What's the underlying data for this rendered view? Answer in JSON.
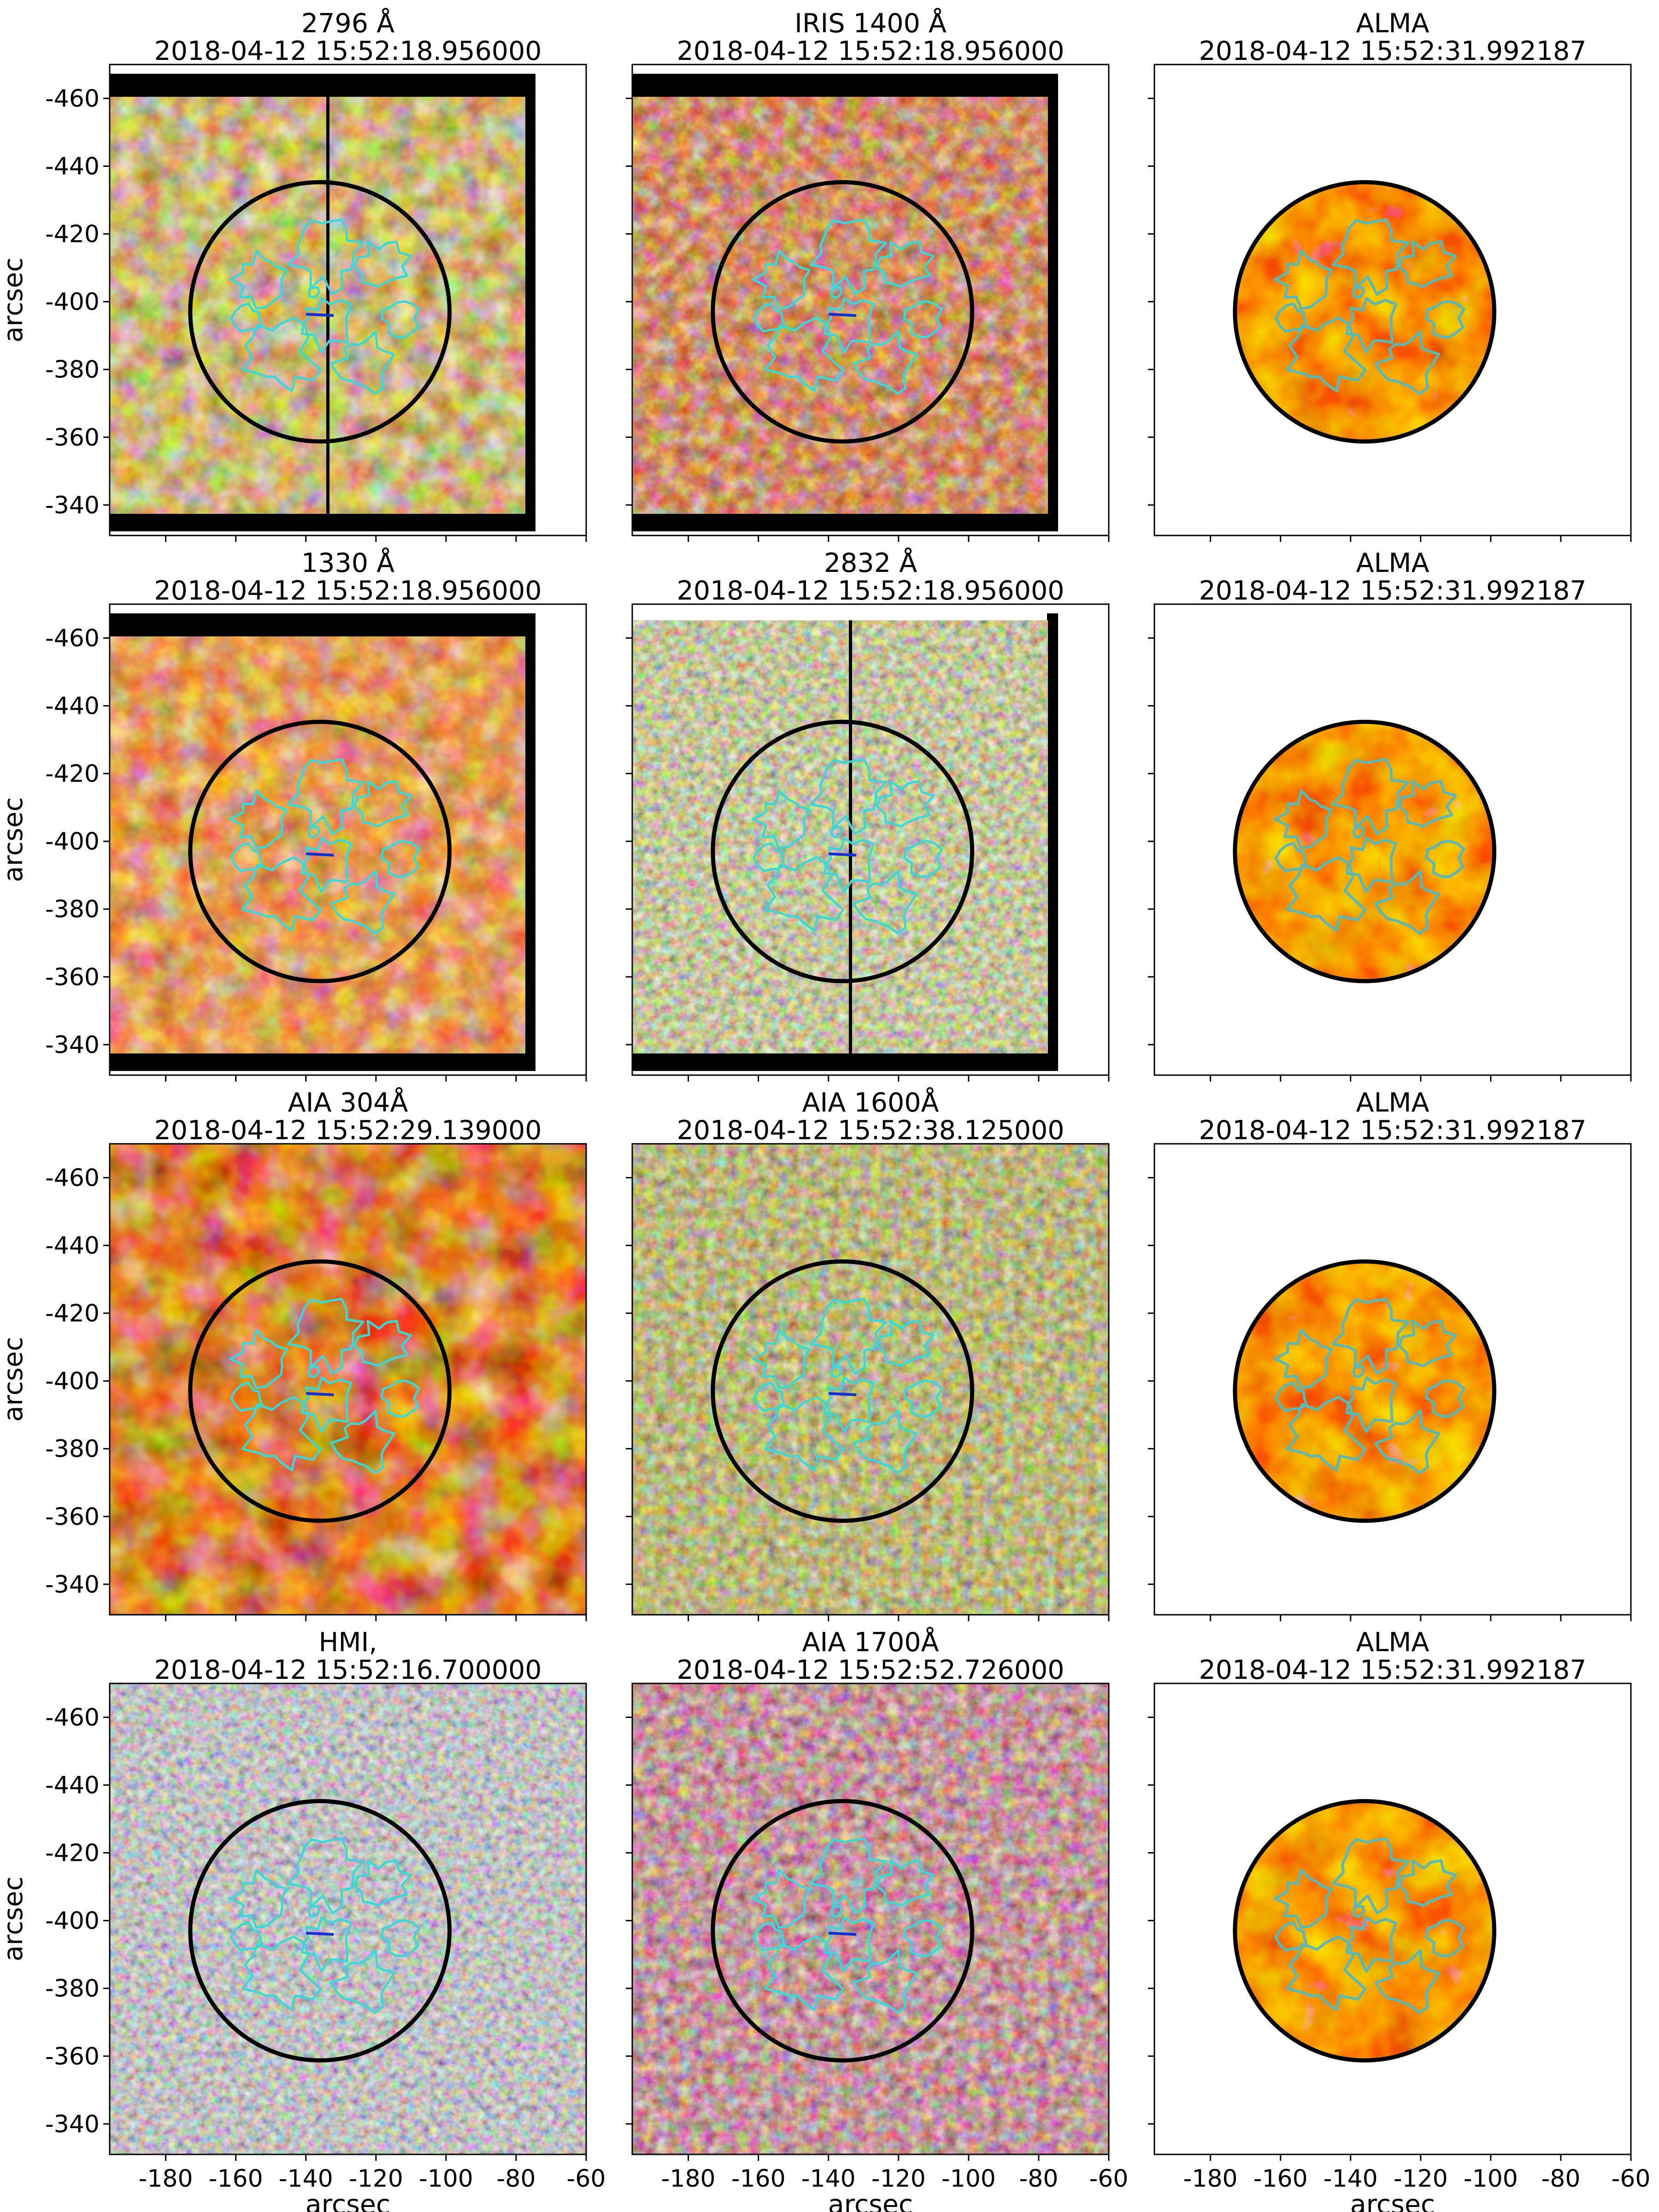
{
  "figure": {
    "panels": [
      {
        "id": "r0c0",
        "line1": "2796 Å",
        "line2": "2018-04-12 15:52:18.956000",
        "theme": "sji2796",
        "kind": "iris",
        "scan": true,
        "topBar": true,
        "bottomBar": true,
        "showY": true,
        "showX": false
      },
      {
        "id": "r0c1",
        "line1": "IRIS 1400 Å",
        "line2": "2018-04-12 15:52:18.956000",
        "theme": "sji1400",
        "kind": "iris",
        "scan": false,
        "topBar": true,
        "bottomBar": true,
        "showY": false,
        "showX": false
      },
      {
        "id": "r0c2",
        "line1": "ALMA",
        "line2": "2018-04-12 15:52:31.992187",
        "theme": "alma",
        "kind": "alma",
        "showY": false,
        "showX": false
      },
      {
        "id": "r1c0",
        "line1": "1330 Å",
        "line2": "2018-04-12 15:52:18.956000",
        "theme": "sji1330",
        "kind": "iris",
        "scan": false,
        "topBar": true,
        "bottomBar": true,
        "showY": true,
        "showX": false
      },
      {
        "id": "r1c1",
        "line1": "2832 Å",
        "line2": "2018-04-12 15:52:18.956000",
        "theme": "sji2832",
        "kind": "iris",
        "scan": true,
        "topBar": false,
        "bottomBar": true,
        "showY": false,
        "showX": false
      },
      {
        "id": "r1c2",
        "line1": "ALMA",
        "line2": "2018-04-12 15:52:31.992187",
        "theme": "alma",
        "kind": "alma",
        "showY": false,
        "showX": false
      },
      {
        "id": "r2c0",
        "line1": "AIA 304Å",
        "line2": "2018-04-12 15:52:29.139000",
        "theme": "aia304",
        "kind": "full",
        "showY": true,
        "showX": false
      },
      {
        "id": "r2c1",
        "line1": "AIA 1600Å",
        "line2": "2018-04-12 15:52:38.125000",
        "theme": "aia1600",
        "kind": "full",
        "showY": false,
        "showX": false
      },
      {
        "id": "r2c2",
        "line1": "ALMA",
        "line2": "2018-04-12 15:52:31.992187",
        "theme": "alma",
        "kind": "alma",
        "showY": false,
        "showX": false
      },
      {
        "id": "r3c0",
        "line1": "HMI,",
        "line2": "2018-04-12 15:52:16.700000",
        "theme": "hmi",
        "kind": "full",
        "showY": true,
        "showX": true
      },
      {
        "id": "r3c1",
        "line1": "AIA 1700Å",
        "line2": "2018-04-12 15:52:52.726000",
        "theme": "aia1700",
        "kind": "full",
        "showY": false,
        "showX": true
      },
      {
        "id": "r3c2",
        "line1": "ALMA",
        "line2": "2018-04-12 15:52:31.992187",
        "theme": "alma",
        "kind": "alma",
        "showY": false,
        "showX": true
      }
    ],
    "x_axis_label": "arcsec",
    "y_axis_label": "arcsec",
    "x_ticks": [
      -180,
      -160,
      -140,
      -120,
      -100,
      -80,
      -60
    ],
    "y_ticks": [
      -340,
      -360,
      -380,
      -400,
      -420,
      -440,
      -460
    ],
    "x_range_arcsec": [
      -196,
      -60
    ],
    "y_range_arcsec": [
      -470,
      -331
    ],
    "fov_circle": {
      "center_arcsec": [
        -136,
        -397
      ],
      "radius_arcsec": 37
    },
    "contour_color": "#3fd6d6",
    "themes": {
      "sji2796": [
        "#1a0d00",
        "#5c3d0a",
        "#a07a2a",
        "#d8c089",
        "#fffbe6"
      ],
      "sji1400": [
        "#2a0700",
        "#6a1f08",
        "#a24520",
        "#d88b6a",
        "#fff4ee"
      ],
      "sji1330": [
        "#3a0800",
        "#8e2a06",
        "#c95516",
        "#f09a52",
        "#ffe8cf"
      ],
      "sji2832": [
        "#0c0c03",
        "#4b4c22",
        "#8f9152",
        "#d3d5a6",
        "#fcfcec"
      ],
      "aia304": [
        "#190000",
        "#6e0d00",
        "#bb3a06",
        "#ee8a3c",
        "#fff1cf"
      ],
      "aia1600": [
        "#0c0c00",
        "#46420f",
        "#7f7a32",
        "#c0bb7c",
        "#fbfbe6"
      ],
      "hmi": [
        "#000000",
        "#474747",
        "#8a8a8a",
        "#c8c8c8",
        "#ffffff"
      ],
      "aia1700": [
        "#140406",
        "#4f1c20",
        "#8d4f53",
        "#cc9a9a",
        "#fbeeee"
      ],
      "alma": [
        "#8a0800",
        "#d81800",
        "#f05200",
        "#f8a000",
        "#fff07a"
      ]
    }
  }
}
